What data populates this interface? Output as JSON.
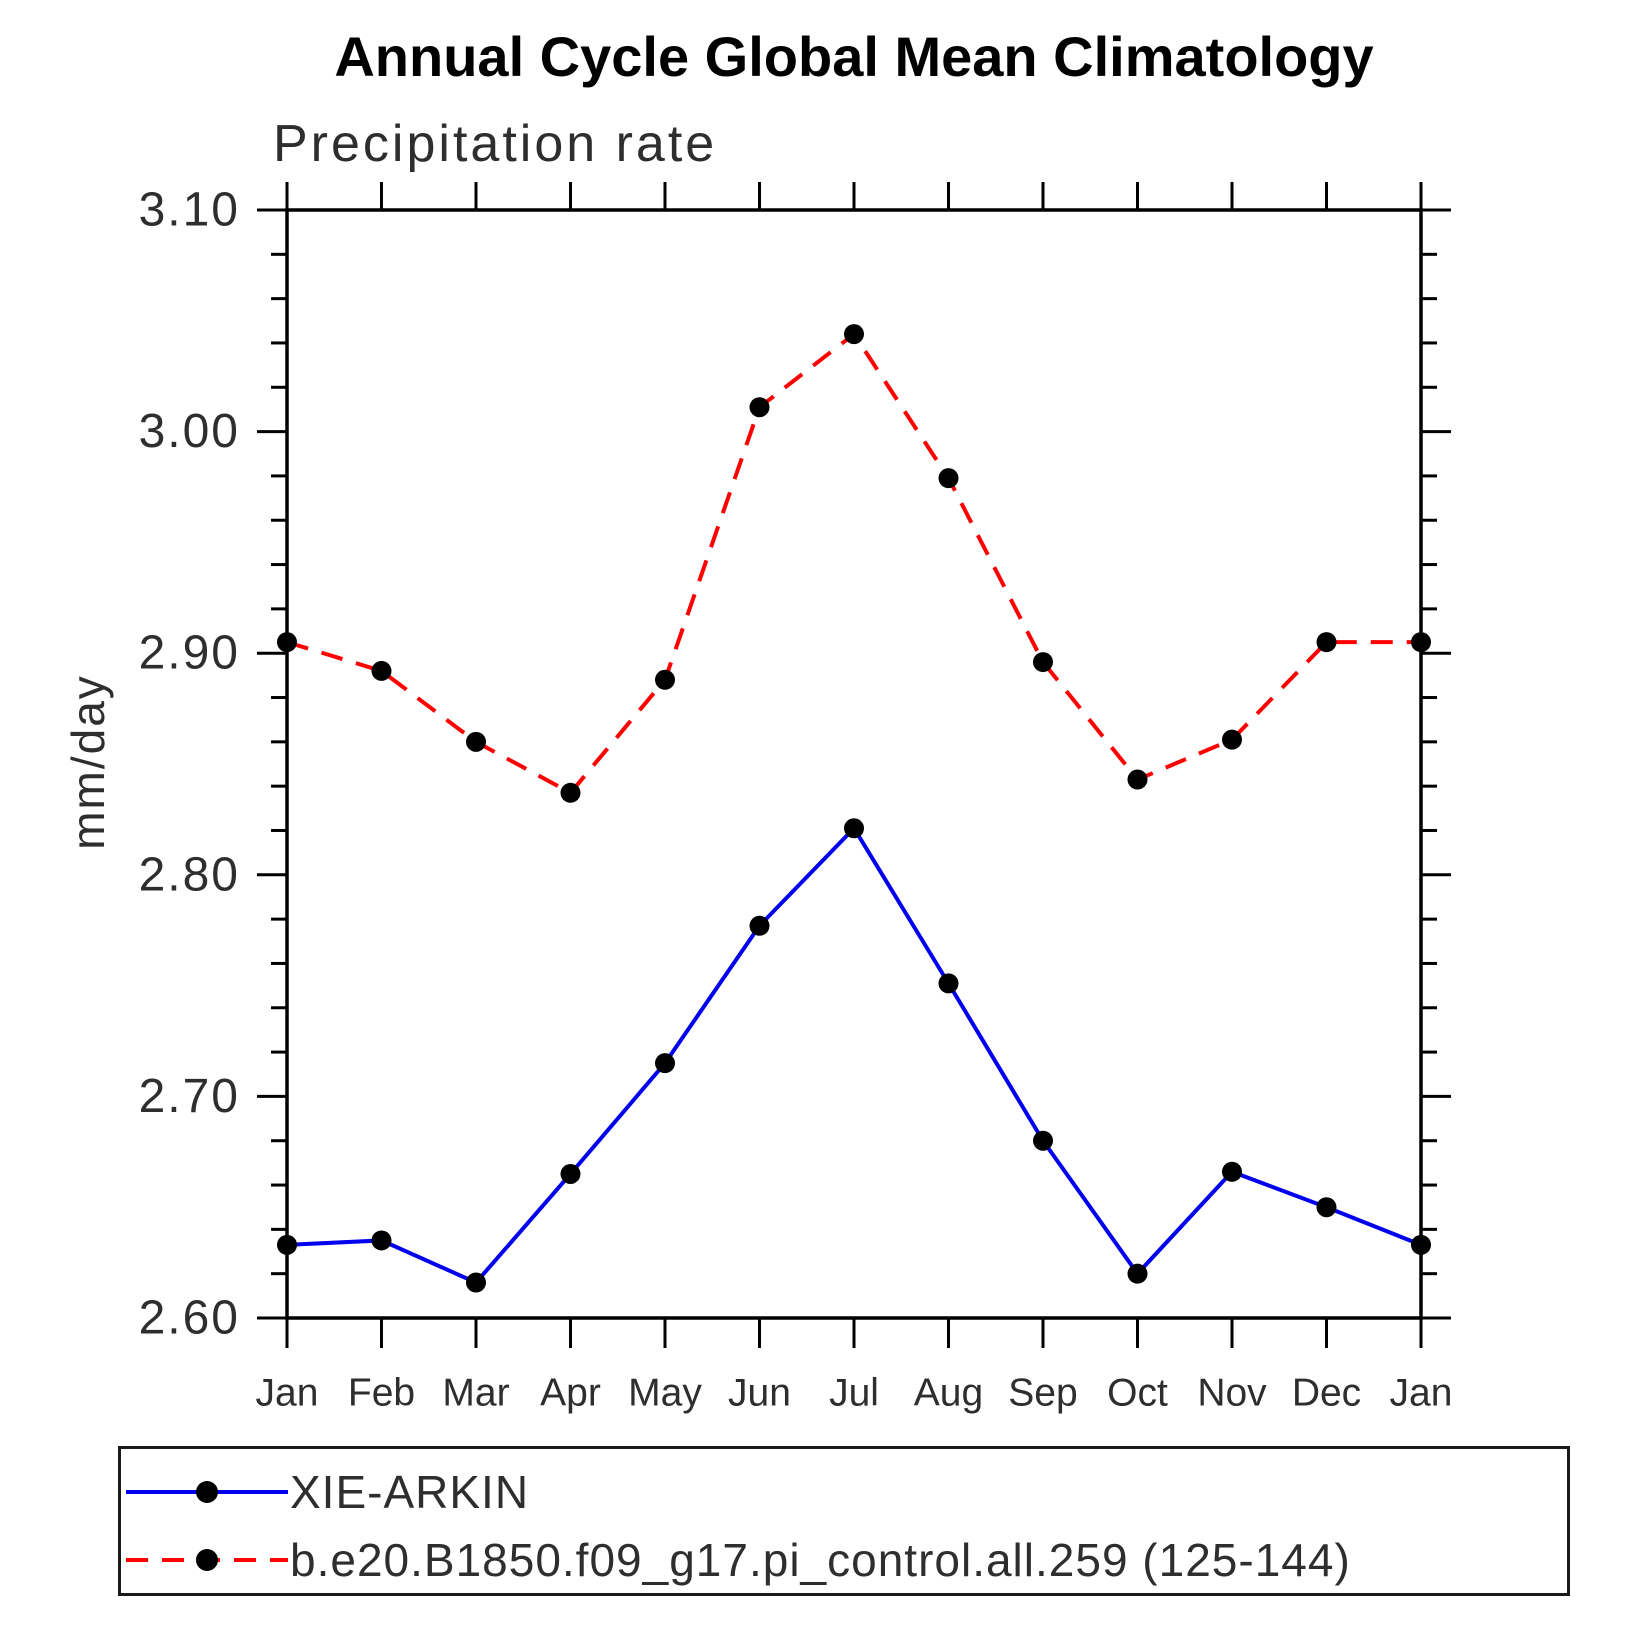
{
  "header": {
    "title": "Annual Cycle Global Mean Climatology",
    "subtitle": "Precipitation rate"
  },
  "y_axis": {
    "label": "mm/day",
    "ticks": [
      "2.60",
      "2.70",
      "2.80",
      "2.90",
      "3.00",
      "3.10"
    ]
  },
  "x_axis": {
    "ticks": [
      "Jan",
      "Feb",
      "Mar",
      "Apr",
      "May",
      "Jun",
      "Jul",
      "Aug",
      "Sep",
      "Oct",
      "Nov",
      "Dec",
      "Jan"
    ]
  },
  "legend": {
    "items": [
      {
        "label": "XIE-ARKIN",
        "line_style": "solid",
        "line_color": "#0000ee",
        "marker": "filled-circle",
        "marker_color": "#000000"
      },
      {
        "label": "b.e20.B1850.f09_g17.pi_control.all.259 (125-144)",
        "line_style": "dashed",
        "line_color": "#ff0000",
        "marker": "filled-circle",
        "marker_color": "#000000"
      }
    ]
  },
  "colors": {
    "xie_arkin_line": "#0000ee",
    "model_line": "#ff0000",
    "marker": "#000000",
    "axis": "#000000",
    "text": "#2e2e2e"
  },
  "chart_data": {
    "type": "line",
    "title": "Annual Cycle Global Mean Climatology",
    "subtitle": "Precipitation rate",
    "xlabel": "",
    "ylabel": "mm/day",
    "categories": [
      "Jan",
      "Feb",
      "Mar",
      "Apr",
      "May",
      "Jun",
      "Jul",
      "Aug",
      "Sep",
      "Oct",
      "Nov",
      "Dec",
      "Jan"
    ],
    "ylim": [
      2.6,
      3.1
    ],
    "ytick_step": 0.1,
    "yminor_step": 0.02,
    "grid": false,
    "legend_position": "bottom",
    "series": [
      {
        "name": "XIE-ARKIN",
        "color": "#0000ee",
        "line_style": "solid",
        "marker": "circle",
        "marker_color": "#000000",
        "values": [
          2.633,
          2.635,
          2.616,
          2.665,
          2.715,
          2.777,
          2.821,
          2.751,
          2.68,
          2.62,
          2.666,
          2.65,
          2.633
        ]
      },
      {
        "name": "b.e20.B1850.f09_g17.pi_control.all.259 (125-144)",
        "color": "#ff0000",
        "line_style": "dashed",
        "marker": "circle",
        "marker_color": "#000000",
        "values": [
          2.905,
          2.892,
          2.86,
          2.837,
          2.888,
          3.011,
          3.044,
          2.979,
          2.896,
          2.843,
          2.861,
          2.905,
          2.905
        ]
      }
    ]
  }
}
